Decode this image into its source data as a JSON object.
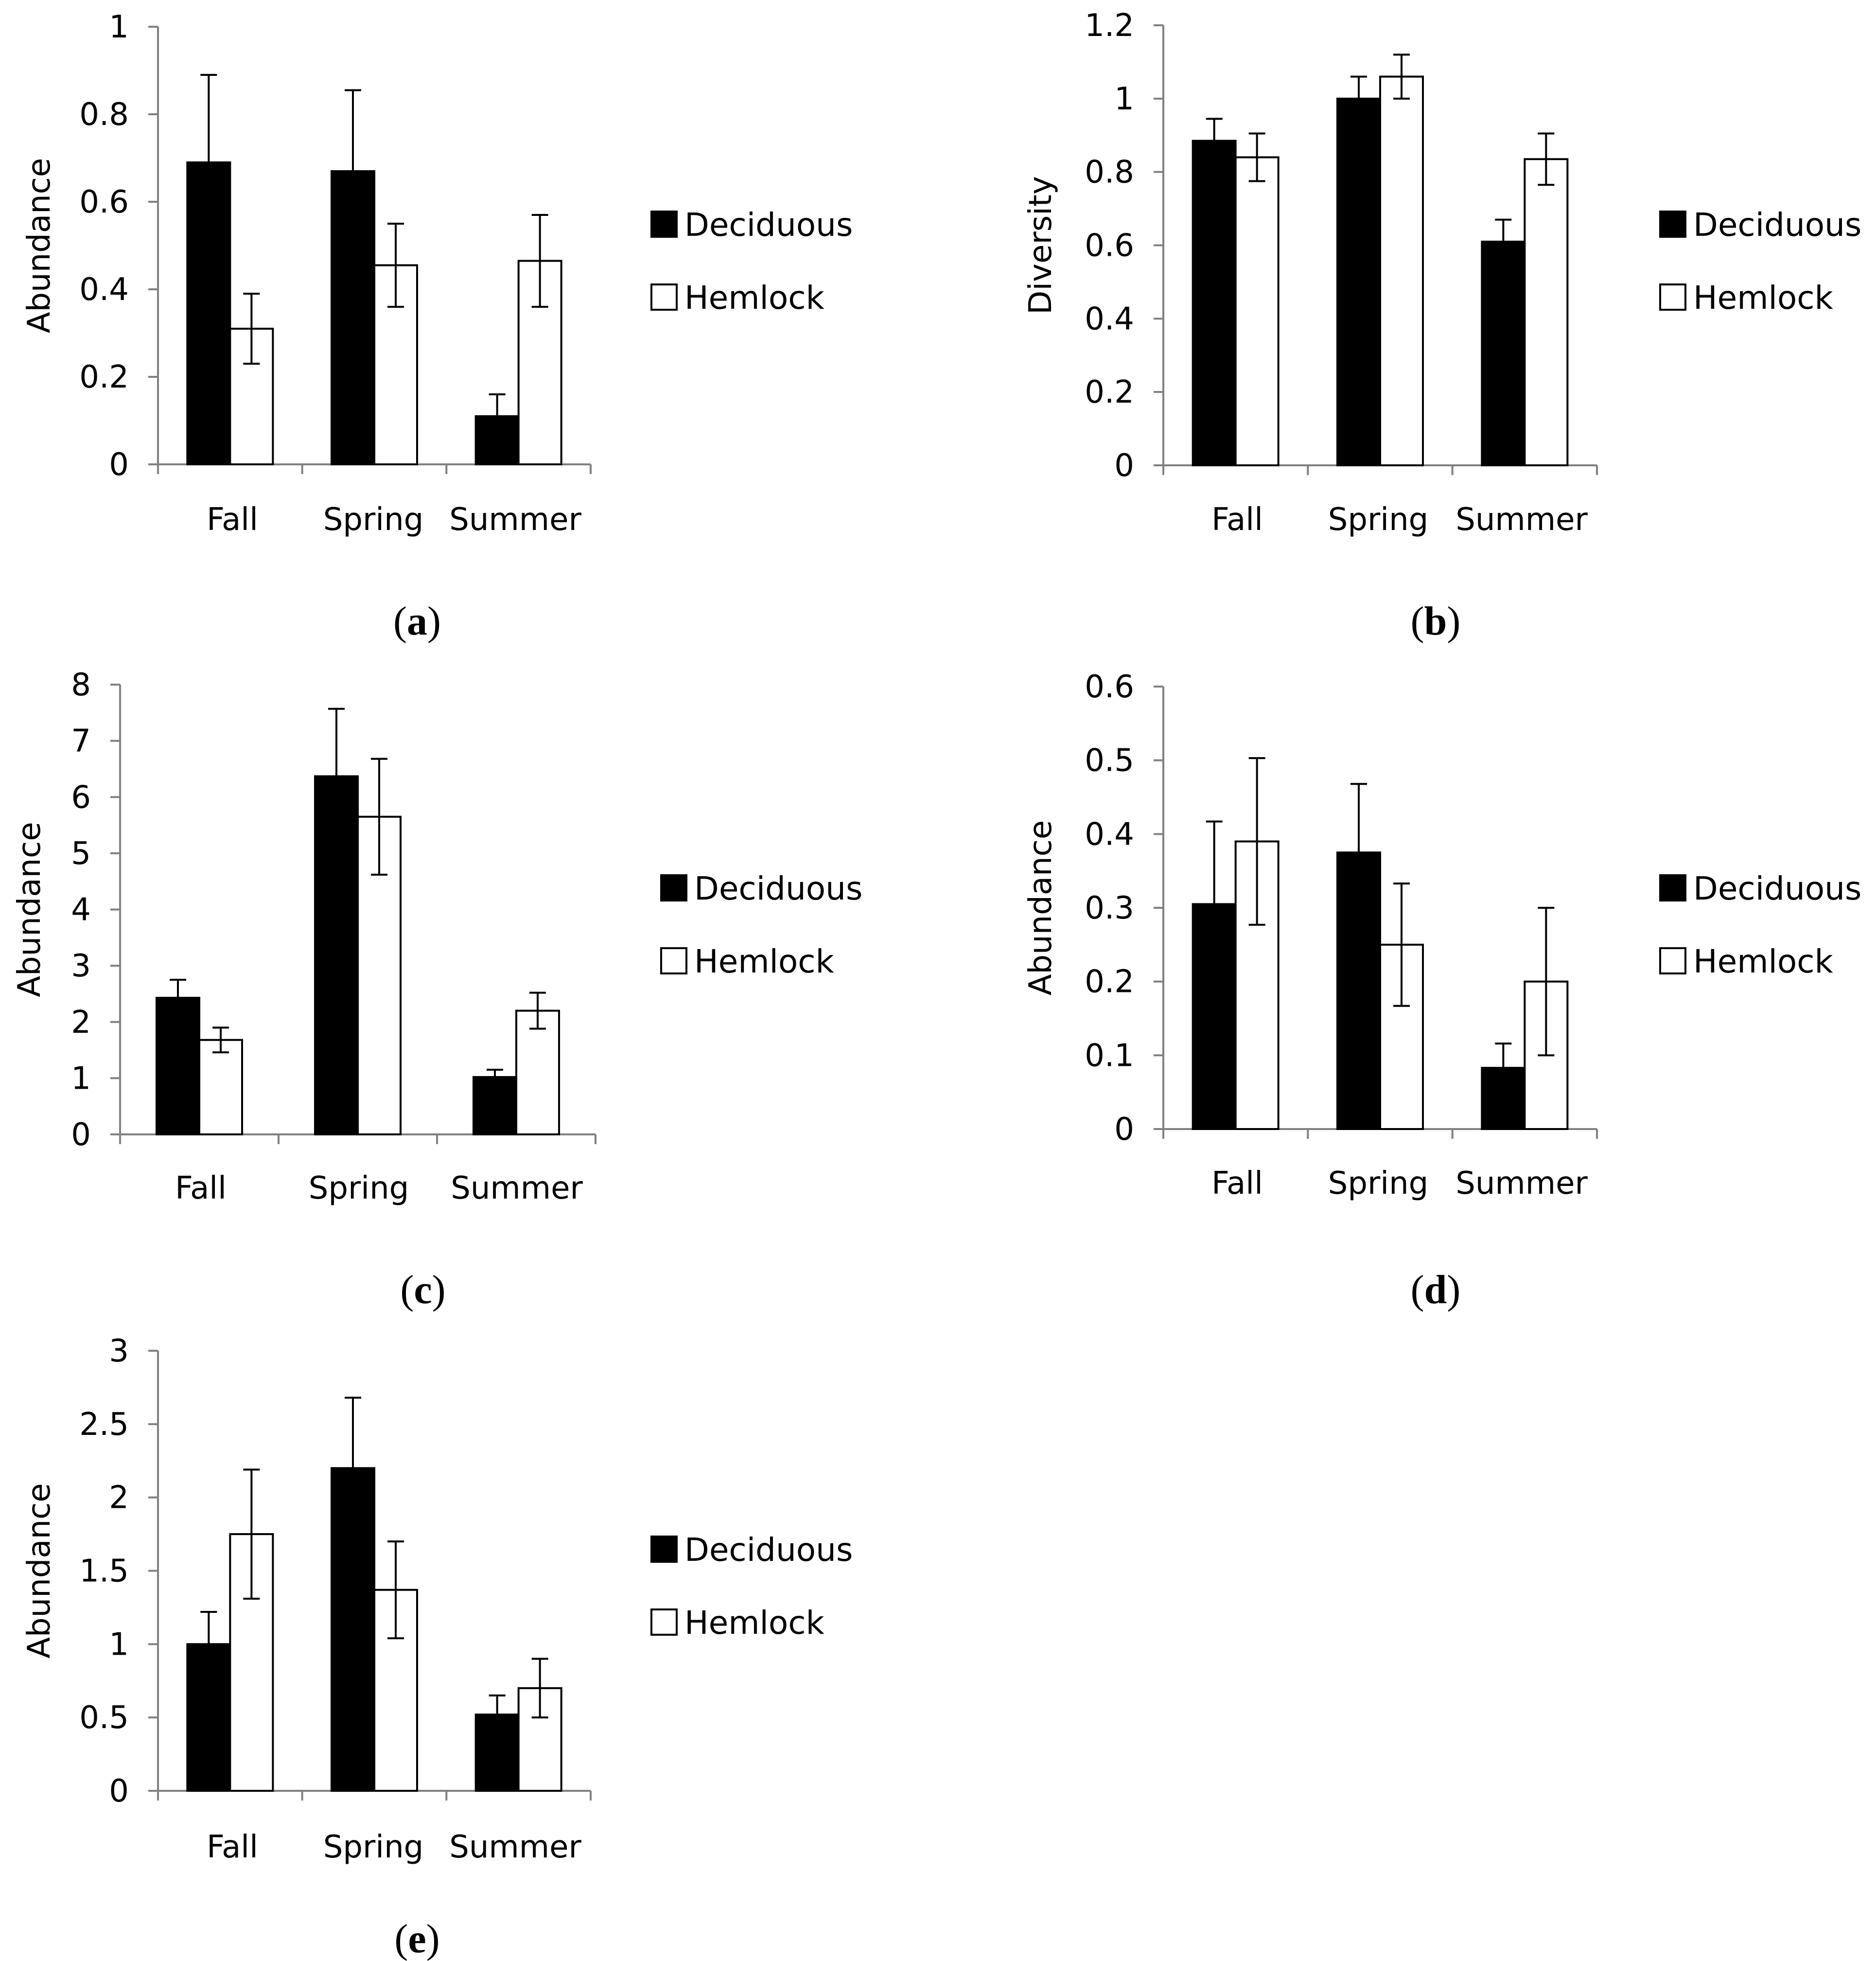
{
  "figure": {
    "description_hidden": false
  },
  "legend_labels": {
    "deciduous": "Deciduous",
    "hemlock": "Hemlock"
  },
  "colors": {
    "deciduous": "#000000",
    "hemlock": "#ffffff",
    "axis": "#808080"
  },
  "chart_data": [
    {
      "panel": "a",
      "type": "bar",
      "ylabel": "Abundance",
      "categories": [
        "Fall",
        "Spring",
        "Summer"
      ],
      "ylim": [
        0,
        1
      ],
      "yticks": [
        0,
        0.2,
        0.4,
        0.6,
        0.8,
        1
      ],
      "ytick_labels": [
        "0",
        "0.2",
        "0.4",
        "0.6",
        "0.8",
        "1"
      ],
      "series": [
        {
          "name": "Deciduous",
          "values": [
            0.69,
            0.67,
            0.11
          ],
          "errors": [
            0.2,
            0.185,
            0.05
          ]
        },
        {
          "name": "Hemlock",
          "values": [
            0.31,
            0.455,
            0.465
          ],
          "errors": [
            0.08,
            0.095,
            0.105
          ]
        }
      ]
    },
    {
      "panel": "b",
      "type": "bar",
      "ylabel": "Diversity",
      "categories": [
        "Fall",
        "Spring",
        "Summer"
      ],
      "ylim": [
        0,
        1.2
      ],
      "yticks": [
        0,
        0.2,
        0.4,
        0.6,
        0.8,
        1,
        1.2
      ],
      "ytick_labels": [
        "0",
        "0.2",
        "0.4",
        "0.6",
        "0.8",
        "1",
        "1.2"
      ],
      "series": [
        {
          "name": "Deciduous",
          "values": [
            0.885,
            1.0,
            0.61
          ],
          "errors": [
            0.06,
            0.06,
            0.06
          ]
        },
        {
          "name": "Hemlock",
          "values": [
            0.84,
            1.06,
            0.835
          ],
          "errors": [
            0.065,
            0.06,
            0.07
          ]
        }
      ]
    },
    {
      "panel": "c",
      "type": "bar",
      "ylabel": "Abundance",
      "categories": [
        "Fall",
        "Spring",
        "Summer"
      ],
      "ylim": [
        0,
        8
      ],
      "yticks": [
        0,
        1,
        2,
        3,
        4,
        5,
        6,
        7,
        8
      ],
      "ytick_labels": [
        "0",
        "1",
        "2",
        "3",
        "4",
        "5",
        "6",
        "7",
        "8"
      ],
      "series": [
        {
          "name": "Deciduous",
          "values": [
            2.43,
            6.37,
            1.02
          ],
          "errors": [
            0.32,
            1.2,
            0.13
          ]
        },
        {
          "name": "Hemlock",
          "values": [
            1.68,
            5.65,
            2.2
          ],
          "errors": [
            0.22,
            1.03,
            0.32
          ]
        }
      ]
    },
    {
      "panel": "d",
      "type": "bar",
      "ylabel": "Abundance",
      "categories": [
        "Fall",
        "Spring",
        "Summer"
      ],
      "ylim": [
        0,
        0.6
      ],
      "yticks": [
        0,
        0.1,
        0.2,
        0.3,
        0.4,
        0.5,
        0.6
      ],
      "ytick_labels": [
        "0",
        "0.1",
        "0.2",
        "0.3",
        "0.4",
        "0.5",
        "0.6"
      ],
      "series": [
        {
          "name": "Deciduous",
          "values": [
            0.305,
            0.375,
            0.083
          ],
          "errors": [
            0.112,
            0.093,
            0.033
          ]
        },
        {
          "name": "Hemlock",
          "values": [
            0.39,
            0.25,
            0.2
          ],
          "errors": [
            0.113,
            0.083,
            0.1
          ]
        }
      ]
    },
    {
      "panel": "e",
      "type": "bar",
      "ylabel": "Abundance",
      "categories": [
        "Fall",
        "Spring",
        "Summer"
      ],
      "ylim": [
        0,
        3
      ],
      "yticks": [
        0,
        0.5,
        1,
        1.5,
        2,
        2.5,
        3
      ],
      "ytick_labels": [
        "0",
        "0.5",
        "1",
        "1.5",
        "2",
        "2.5",
        "3"
      ],
      "series": [
        {
          "name": "Deciduous",
          "values": [
            1.0,
            2.2,
            0.52
          ],
          "errors": [
            0.22,
            0.48,
            0.13
          ]
        },
        {
          "name": "Hemlock",
          "values": [
            1.75,
            1.37,
            0.7
          ],
          "errors": [
            0.44,
            0.33,
            0.2
          ]
        }
      ]
    }
  ]
}
